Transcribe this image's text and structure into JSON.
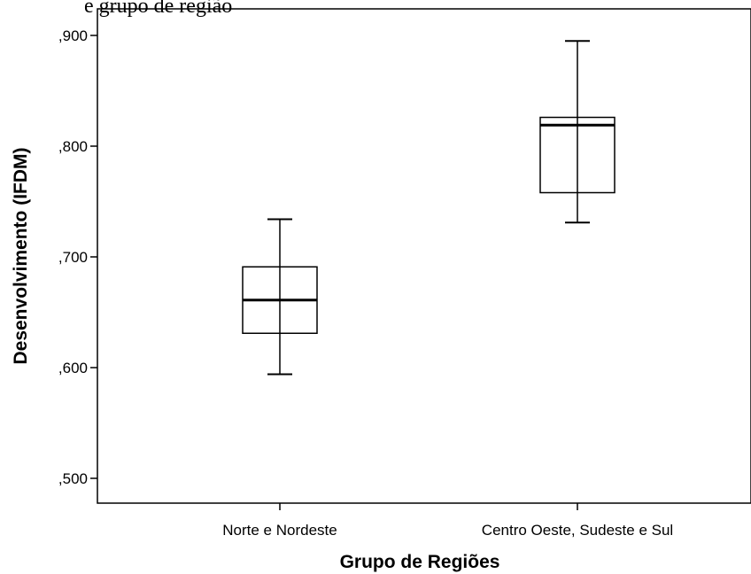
{
  "header_text": "e grupo de região",
  "chart_data": {
    "type": "boxplot",
    "xlabel": "Grupo de Regiões",
    "ylabel": "Desenvolvimento (IFDM)",
    "categories": [
      "Norte e Nordeste",
      "Centro Oeste, Sudeste e Sul"
    ],
    "ylim": [
      0.485,
      0.925
    ],
    "yticks": [
      0.5,
      0.6,
      0.7,
      0.8,
      0.9
    ],
    "ytick_labels": [
      ",500",
      ",600",
      ",700",
      ",800",
      ",900"
    ],
    "boxes": [
      {
        "category": "Norte e Nordeste",
        "min": 0.594,
        "q1": 0.631,
        "median": 0.661,
        "q3": 0.691,
        "max": 0.734
      },
      {
        "category": "Centro Oeste, Sudeste e Sul",
        "min": 0.731,
        "q1": 0.758,
        "median": 0.819,
        "q3": 0.826,
        "max": 0.895
      }
    ],
    "grid": false,
    "colors": {
      "box_fill": "#ffffff",
      "stroke": "#000000"
    }
  }
}
